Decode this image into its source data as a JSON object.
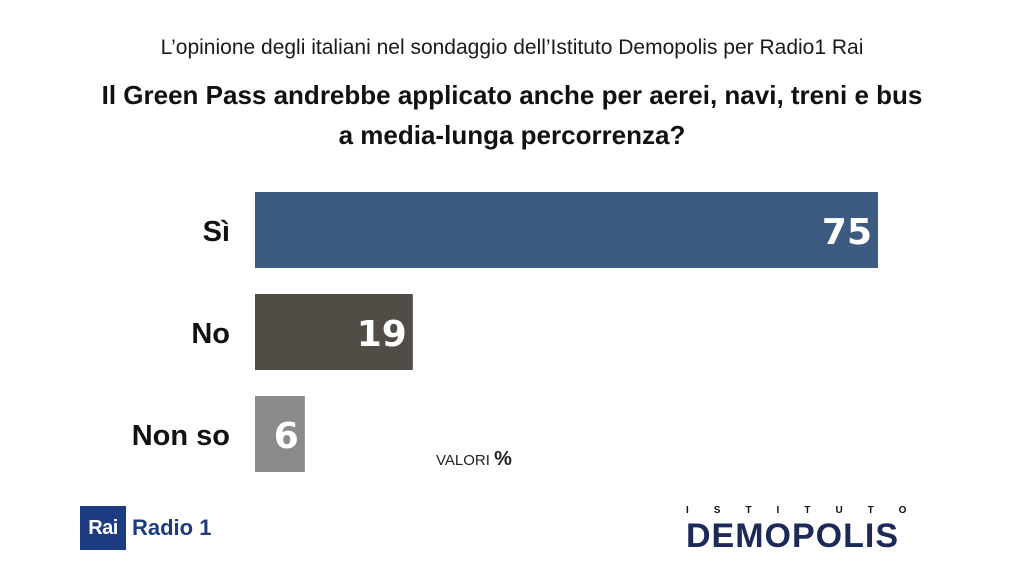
{
  "header": {
    "subtitle": "L’opinione degli italiani nel sondaggio dell’Istituto Demopolis per Radio1 Rai",
    "title_line1": "Il Green Pass andrebbe applicato anche per aerei, navi, treni e bus",
    "title_line2": "a media-lunga percorrenza?"
  },
  "chart_data": {
    "type": "bar",
    "orientation": "horizontal",
    "categories": [
      "Sì",
      "No",
      "Non so"
    ],
    "values": [
      75,
      19,
      6
    ],
    "colors": [
      "#3d5a80",
      "#524c47",
      "#8b8b8b"
    ],
    "xlim": [
      0,
      75
    ],
    "data_labels": [
      "75",
      "19",
      "6"
    ],
    "grid": false,
    "unit_note": "VALORI",
    "unit_symbol": "%"
  },
  "logos": {
    "rai_box": "Rai",
    "rai_name": "Radio 1",
    "demopolis_top": "ISTITUTO",
    "demopolis_main": "DEMOPOLIS"
  }
}
